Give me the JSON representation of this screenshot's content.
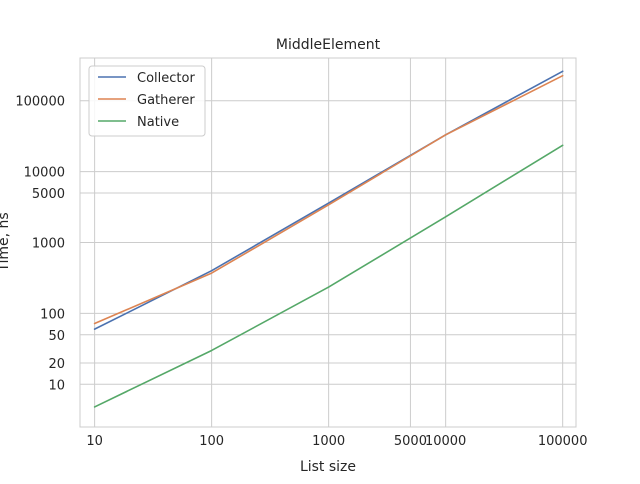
{
  "chart_data": {
    "type": "line",
    "title": "MiddleElement",
    "xlabel": "List size",
    "ylabel": "Time, ns",
    "x_scale": "log",
    "y_scale": "log",
    "xlim": [
      7.5,
      130000
    ],
    "ylim": [
      2.5,
      400000
    ],
    "x_ticks": [
      10,
      100,
      1000,
      5000,
      10000,
      100000
    ],
    "x_tick_labels": [
      "10",
      "100",
      "1000",
      "5000",
      "10000",
      "100000"
    ],
    "y_ticks": [
      10,
      20,
      50,
      100,
      1000,
      5000,
      10000,
      100000
    ],
    "y_tick_labels": [
      "10",
      "20",
      "50",
      "100",
      "1000",
      "5000",
      "10000",
      "100000"
    ],
    "grid": true,
    "legend_position": "top-left",
    "x": [
      10,
      100,
      1000,
      10000,
      100000
    ],
    "series": [
      {
        "name": "Collector",
        "color": "#4c72b0",
        "values": [
          60,
          400,
          3600,
          33000,
          260000
        ]
      },
      {
        "name": "Gatherer",
        "color": "#dd8452",
        "values": [
          72,
          370,
          3400,
          33000,
          225000
        ]
      },
      {
        "name": "Native",
        "color": "#55a868",
        "values": [
          4.8,
          30,
          235,
          2300,
          23500
        ]
      }
    ]
  }
}
